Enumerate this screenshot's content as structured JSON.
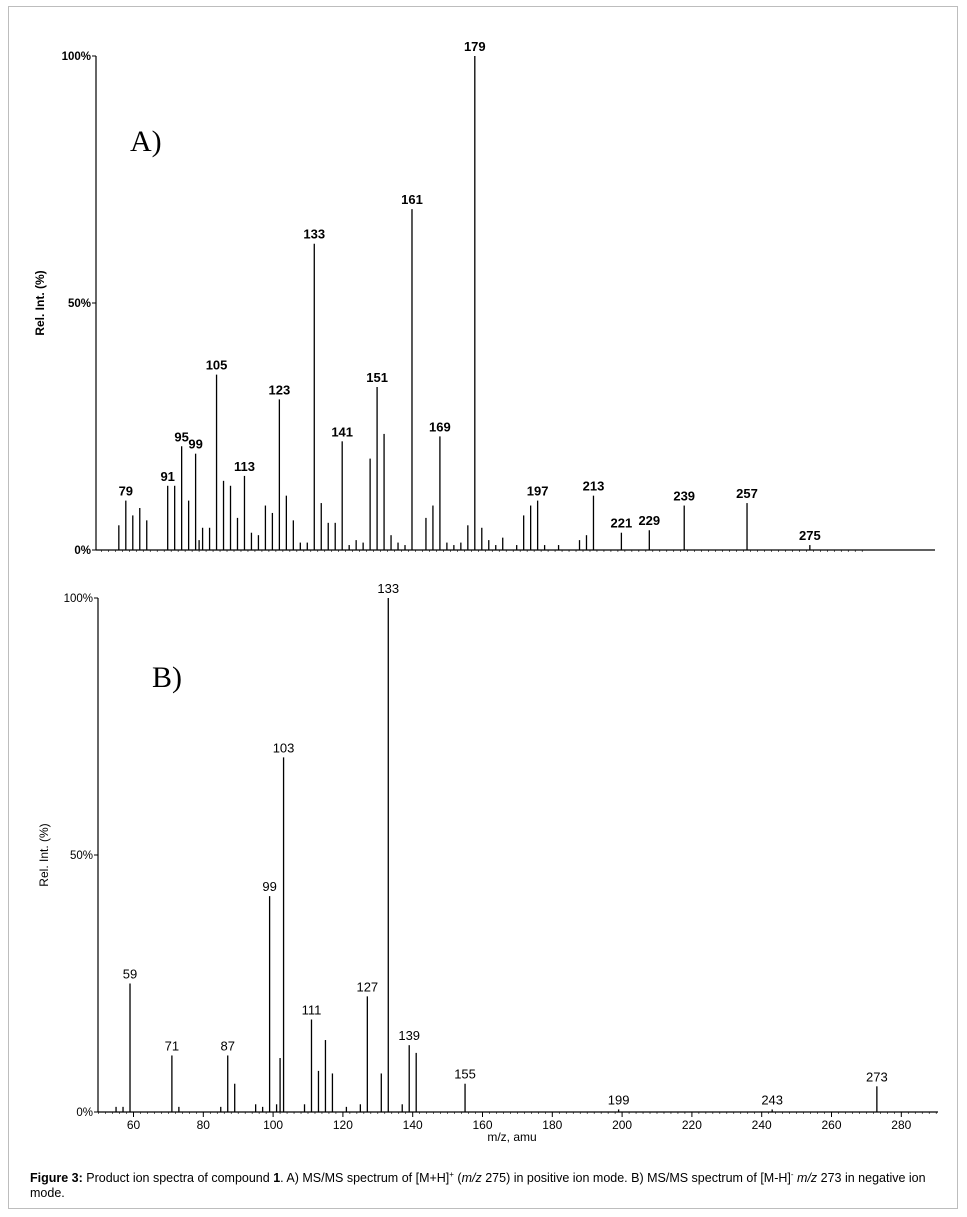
{
  "caption": {
    "lead": "Figure 3:",
    "p1": " Product ion spectra of compound ",
    "compound": "1",
    "p2": ". A) MS/MS spectrum of [M+H]",
    "sup_pos": "+",
    "p3": " (",
    "mz_italic1": "m/z",
    "p4": " 275) in positive ion mode. B) MS/MS spectrum of [M-H]",
    "sup_neg": "-",
    "p5": " ",
    "mz_italic2": "m/z",
    "p6": " 273 in negative ion mode."
  },
  "chart_data": [
    {
      "type": "bar",
      "panel_label": "A)",
      "ylabel": "Rel. Int. (%)",
      "yticks": [
        "100%",
        "50%",
        "0%"
      ],
      "ylim": [
        0,
        100
      ],
      "xlim": [
        49,
        290
      ],
      "bold_labels": true,
      "peaks": [
        {
          "x": 77,
          "y": 5
        },
        {
          "x": 79,
          "y": 10,
          "label": "79"
        },
        {
          "x": 81,
          "y": 7
        },
        {
          "x": 83,
          "y": 8.5
        },
        {
          "x": 85,
          "y": 6
        },
        {
          "x": 91,
          "y": 13,
          "label": "91"
        },
        {
          "x": 93,
          "y": 13
        },
        {
          "x": 95,
          "y": 21,
          "label": "95"
        },
        {
          "x": 97,
          "y": 10
        },
        {
          "x": 99,
          "y": 19.5,
          "label": "99"
        },
        {
          "x": 100,
          "y": 2
        },
        {
          "x": 101,
          "y": 4.5
        },
        {
          "x": 103,
          "y": 4.5
        },
        {
          "x": 105,
          "y": 35.5,
          "label": "105"
        },
        {
          "x": 107,
          "y": 14
        },
        {
          "x": 109,
          "y": 13
        },
        {
          "x": 111,
          "y": 6.5
        },
        {
          "x": 113,
          "y": 15,
          "label": "113"
        },
        {
          "x": 115,
          "y": 3.5
        },
        {
          "x": 117,
          "y": 3
        },
        {
          "x": 119,
          "y": 9
        },
        {
          "x": 121,
          "y": 7.5
        },
        {
          "x": 123,
          "y": 30.5,
          "label": "123"
        },
        {
          "x": 125,
          "y": 11
        },
        {
          "x": 127,
          "y": 6
        },
        {
          "x": 129,
          "y": 1.5
        },
        {
          "x": 131,
          "y": 1.5
        },
        {
          "x": 133,
          "y": 62,
          "label": "133"
        },
        {
          "x": 135,
          "y": 9.5
        },
        {
          "x": 137,
          "y": 5.5
        },
        {
          "x": 139,
          "y": 5.5
        },
        {
          "x": 141,
          "y": 22,
          "label": "141"
        },
        {
          "x": 143,
          "y": 1
        },
        {
          "x": 145,
          "y": 2
        },
        {
          "x": 147,
          "y": 1.5
        },
        {
          "x": 149,
          "y": 18.5
        },
        {
          "x": 151,
          "y": 33,
          "label": "151"
        },
        {
          "x": 153,
          "y": 23.5
        },
        {
          "x": 155,
          "y": 3
        },
        {
          "x": 157,
          "y": 1.5
        },
        {
          "x": 159,
          "y": 1
        },
        {
          "x": 161,
          "y": 69,
          "label": "161"
        },
        {
          "x": 165,
          "y": 6.5
        },
        {
          "x": 167,
          "y": 9
        },
        {
          "x": 169,
          "y": 23,
          "label": "169"
        },
        {
          "x": 171,
          "y": 1.5
        },
        {
          "x": 173,
          "y": 1
        },
        {
          "x": 175,
          "y": 1.5
        },
        {
          "x": 177,
          "y": 5
        },
        {
          "x": 179,
          "y": 100,
          "label": "179"
        },
        {
          "x": 181,
          "y": 4.5
        },
        {
          "x": 183,
          "y": 2
        },
        {
          "x": 185,
          "y": 1
        },
        {
          "x": 187,
          "y": 2.5
        },
        {
          "x": 191,
          "y": 1
        },
        {
          "x": 193,
          "y": 7
        },
        {
          "x": 195,
          "y": 9
        },
        {
          "x": 197,
          "y": 10,
          "label": "197"
        },
        {
          "x": 199,
          "y": 1
        },
        {
          "x": 203,
          "y": 1
        },
        {
          "x": 209,
          "y": 2
        },
        {
          "x": 211,
          "y": 3
        },
        {
          "x": 213,
          "y": 11,
          "label": "213"
        },
        {
          "x": 221,
          "y": 3.5,
          "label": "221"
        },
        {
          "x": 229,
          "y": 4,
          "label": "229"
        },
        {
          "x": 239,
          "y": 9,
          "label": "239"
        },
        {
          "x": 257,
          "y": 9.5,
          "label": "257"
        },
        {
          "x": 275,
          "y": 1,
          "label": "275"
        }
      ]
    },
    {
      "type": "bar",
      "panel_label": "B)",
      "ylabel": "Rel. Int. (%)",
      "xlabel": "m/z, amu",
      "yticks": [
        "100%",
        "50%",
        "0%"
      ],
      "ylim": [
        0,
        100
      ],
      "xlim": [
        49,
        290
      ],
      "xticks": [
        60,
        80,
        100,
        120,
        140,
        160,
        180,
        200,
        220,
        240,
        260,
        280
      ],
      "bold_labels": false,
      "peaks": [
        {
          "x": 55,
          "y": 1
        },
        {
          "x": 57,
          "y": 1
        },
        {
          "x": 59,
          "y": 25,
          "label": "59"
        },
        {
          "x": 71,
          "y": 11,
          "label": "71"
        },
        {
          "x": 73,
          "y": 1
        },
        {
          "x": 85,
          "y": 1
        },
        {
          "x": 87,
          "y": 11,
          "label": "87"
        },
        {
          "x": 89,
          "y": 5.5
        },
        {
          "x": 95,
          "y": 1.5
        },
        {
          "x": 97,
          "y": 1
        },
        {
          "x": 99,
          "y": 42,
          "label": "99"
        },
        {
          "x": 101,
          "y": 1.5
        },
        {
          "x": 102,
          "y": 10.5
        },
        {
          "x": 103,
          "y": 69,
          "label": "103"
        },
        {
          "x": 109,
          "y": 1.5
        },
        {
          "x": 111,
          "y": 18,
          "label": "111"
        },
        {
          "x": 113,
          "y": 8
        },
        {
          "x": 115,
          "y": 14
        },
        {
          "x": 117,
          "y": 7.5
        },
        {
          "x": 121,
          "y": 1
        },
        {
          "x": 125,
          "y": 1.5
        },
        {
          "x": 127,
          "y": 22.5,
          "label": "127"
        },
        {
          "x": 131,
          "y": 7.5
        },
        {
          "x": 133,
          "y": 100,
          "label": "133"
        },
        {
          "x": 137,
          "y": 1.5
        },
        {
          "x": 139,
          "y": 13,
          "label": "139"
        },
        {
          "x": 141,
          "y": 11.5
        },
        {
          "x": 155,
          "y": 5.5,
          "label": "155"
        },
        {
          "x": 199,
          "y": 0.5,
          "label": "199"
        },
        {
          "x": 243,
          "y": 0.5,
          "label": "243"
        },
        {
          "x": 273,
          "y": 5,
          "label": "273"
        }
      ]
    }
  ]
}
